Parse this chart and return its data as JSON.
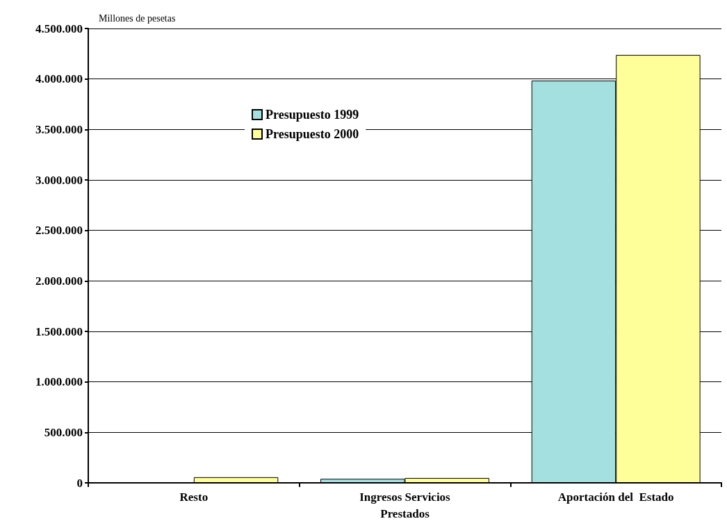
{
  "chart_data": {
    "type": "bar",
    "ylabel": "Millones de pesetas",
    "categories": [
      "Resto",
      "Ingresos Servicios\nPrestados",
      "Aportación del  Estado"
    ],
    "series": [
      {
        "name": "Presupuesto 1999",
        "color": "#a4e0e0",
        "values": [
          null,
          40000,
          3984000
        ]
      },
      {
        "name": "Presupuesto 2000",
        "color": "#ffff99",
        "values": [
          56000,
          48000,
          4238000
        ]
      }
    ],
    "ylim": [
      0,
      4500000
    ],
    "yticks": [
      0,
      {
        "value": 500000,
        "label": "500.000"
      },
      {
        "value": 1000000,
        "label": "1.000.000"
      },
      {
        "value": 1500000,
        "label": "1.500.000"
      },
      {
        "value": 2000000,
        "label": "2.000.000"
      },
      {
        "value": 2500000,
        "label": "2.500.000"
      },
      {
        "value": 3000000,
        "label": "3.000.000"
      },
      {
        "value": 3500000,
        "label": "3.500.000"
      },
      {
        "value": 4000000,
        "label": "4.000.000"
      },
      {
        "value": 4500000,
        "label": "4.500.000"
      }
    ],
    "grid": "y",
    "legend": "top left"
  }
}
